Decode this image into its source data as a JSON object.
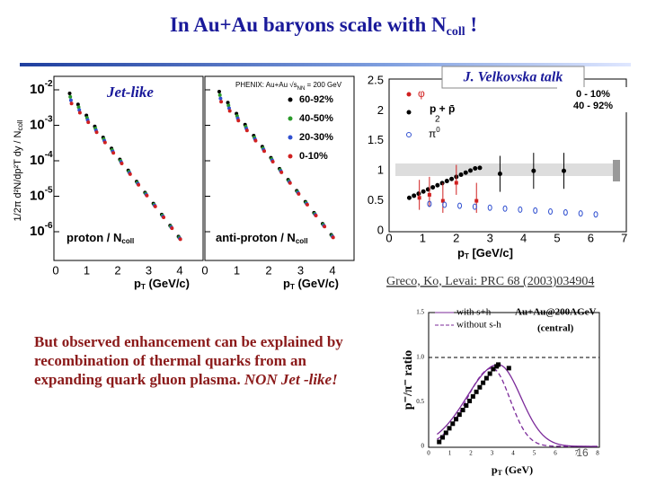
{
  "title": {
    "text": "In Au+Au baryons scale with N",
    "subscript": "coll",
    "end": " !"
  },
  "spectra": {
    "annotation": "Jet-like",
    "y_label": "1/2π d²N/dp²T dy / N",
    "y_label_sub": "coll",
    "y_ticks": [
      {
        "base": "10",
        "exp": "-2"
      },
      {
        "base": "10",
        "exp": "-3"
      },
      {
        "base": "10",
        "exp": "-4"
      },
      {
        "base": "10",
        "exp": "-5"
      },
      {
        "base": "10",
        "exp": "-6"
      }
    ],
    "panels": [
      {
        "label": "proton / N",
        "label_sub": "coll",
        "x_ticks": [
          "0",
          "1",
          "2",
          "3",
          "4"
        ],
        "x_label": "p",
        "x_label_sub": "T",
        "x_label_unit": " (GeV/c)"
      },
      {
        "label": "anti-proton / N",
        "label_sub": "coll",
        "x_ticks": [
          "0",
          "1",
          "2",
          "3",
          "4"
        ],
        "x_label": "p",
        "x_label_sub": "T",
        "x_label_unit": " (GeV/c)"
      }
    ],
    "legend": {
      "header": "PHENIX: Au+Au √s",
      "header_sub": "NN",
      "header_end": " = 200 GeV",
      "entries": [
        "60-92%",
        "40-50%",
        "20-30%",
        "0-10%"
      ]
    }
  },
  "ratio_plot": {
    "credit": "J. Velkovska talk",
    "y_ticks": [
      "2.5",
      "2",
      "1.5",
      "1",
      "0.5",
      "0"
    ],
    "x_ticks": [
      "0",
      "1",
      "2",
      "3",
      "4",
      "5",
      "6",
      "7"
    ],
    "x_label": "p",
    "x_label_sub": "T",
    "x_label_unit": " [GeV/c]",
    "legend": {
      "phi": "φ",
      "proton": "p + p̄",
      "proton_den": "2",
      "pion": "π",
      "pion_sup": "0"
    },
    "centrality": [
      "0 - 10%",
      "40 - 92%"
    ]
  },
  "reference": "Greco, Ko, Levai: PRC 68 (2003)034904",
  "body": {
    "text": "But observed enhancement can be explained by recombination of thermal quarks from an expanding quark gluon plasma. ",
    "emphasis": "NON Jet -like!"
  },
  "model_plot": {
    "y_label": "p⁻/π⁻ ratio",
    "y_ticks": [
      "1.5",
      "1.0",
      "0.5",
      "0"
    ],
    "x_ticks": [
      "0",
      "1",
      "2",
      "3",
      "4",
      "5",
      "6",
      "7",
      "8"
    ],
    "x_label": "p",
    "x_label_sub": "T",
    "x_label_unit": " (GeV)",
    "legend": [
      "with s+h",
      "without s-h"
    ],
    "system": "Au+Au@200AGeV",
    "centrality": "(central)"
  },
  "page_number": "16"
}
